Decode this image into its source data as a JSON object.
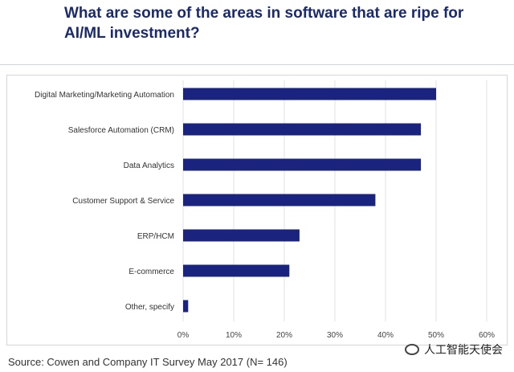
{
  "chart_data": {
    "type": "bar",
    "orientation": "horizontal",
    "title": "What are some of the areas in software that are ripe for AI/ML investment?",
    "categories": [
      "Digital Marketing/Marketing Automation",
      "Salesforce Automation (CRM)",
      "Data Analytics",
      "Customer Support & Service",
      "ERP/HCM",
      "E-commerce",
      "Other, specify"
    ],
    "values": [
      50,
      47,
      47,
      38,
      23,
      21,
      1
    ],
    "xlim": [
      0,
      60
    ],
    "xticks": [
      0,
      10,
      20,
      30,
      40,
      50,
      60
    ],
    "xtick_labels": [
      "0%",
      "10%",
      "20%",
      "30%",
      "40%",
      "50%",
      "60%"
    ],
    "xlabel": "",
    "ylabel": "",
    "grid": "vertical",
    "bar_color": "#1a237e",
    "grid_color": "#dfe1e5"
  },
  "source": "Source: Cowen and Company IT Survey May 2017 (N= 146)",
  "watermark": "人工智能天使会",
  "title_color": "#1b2a6b"
}
